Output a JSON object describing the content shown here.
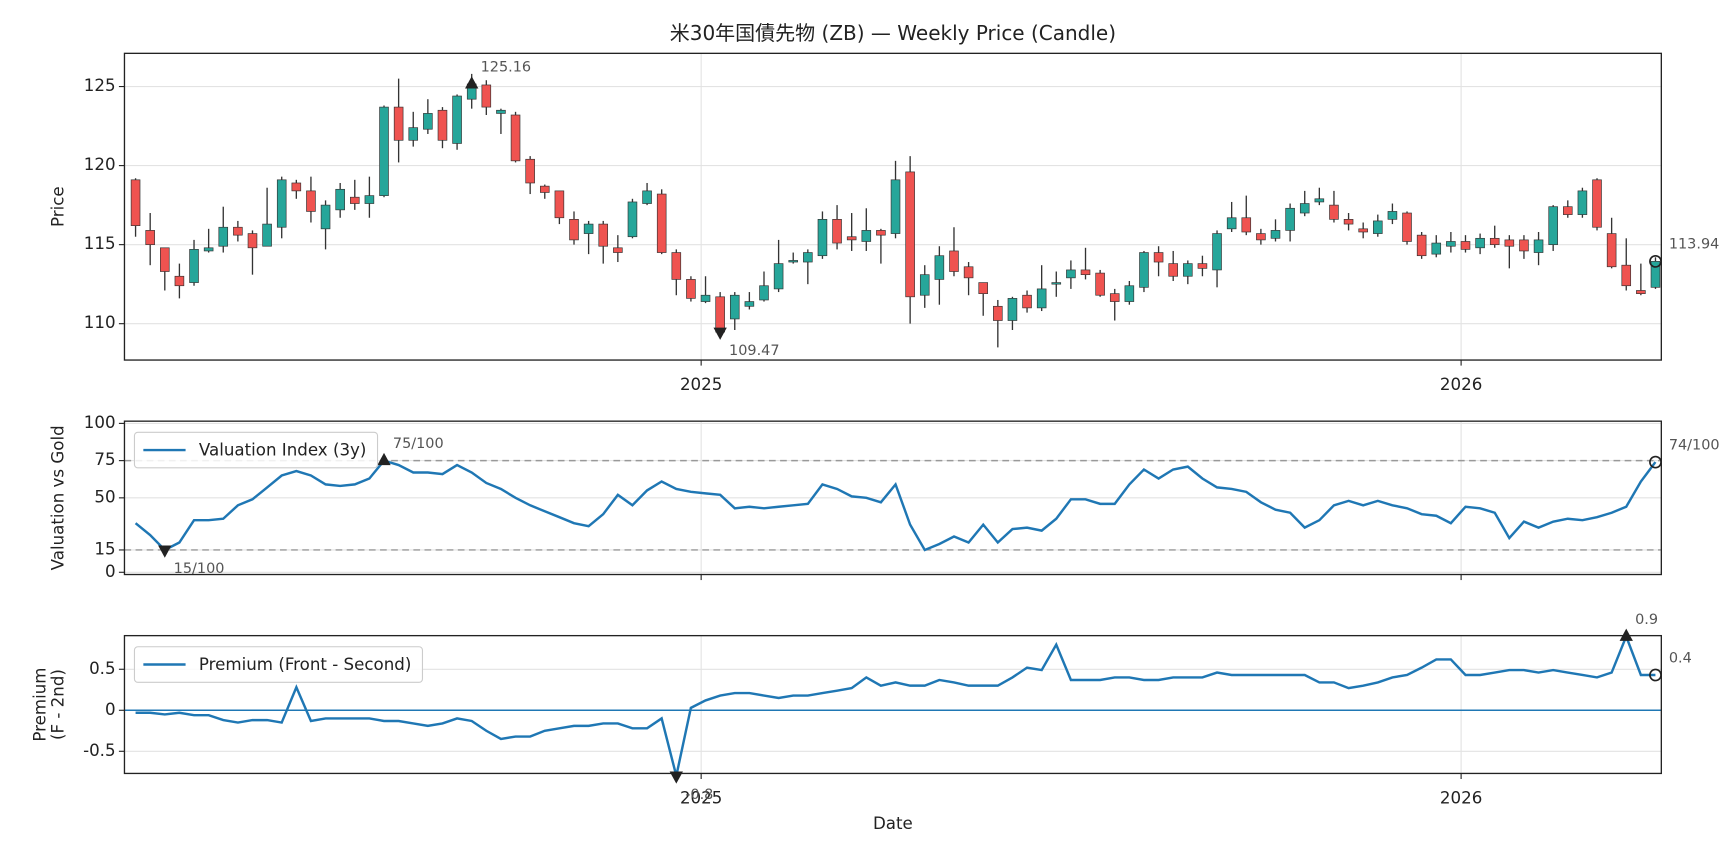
{
  "chart_data": [
    {
      "type": "candlestick",
      "title": "米30年国債先物 (ZB) — Weekly Price (Candle)",
      "ylabel": [
        "Price"
      ],
      "up_color": "#26a69a",
      "down_color": "#ef5350",
      "grid": true,
      "xlim": [
        -0.76,
        104.4
      ],
      "xticks": [
        {
          "value": 38.7,
          "label": "2025"
        },
        {
          "value": 90.7,
          "label": "2026"
        }
      ],
      "ylim": [
        107.7,
        127.1
      ],
      "yticks": [
        110,
        115,
        120,
        125
      ],
      "open": [
        119.1,
        115.9,
        114.8,
        113.0,
        112.6,
        114.6,
        114.9,
        116.1,
        115.7,
        114.9,
        116.1,
        118.9,
        118.4,
        116.0,
        117.2,
        118.0,
        117.6,
        118.1,
        123.7,
        121.6,
        122.3,
        123.5,
        121.4,
        124.2,
        125.1,
        123.3,
        123.2,
        120.4,
        118.7,
        118.4,
        116.6,
        115.7,
        116.3,
        114.8,
        115.5,
        117.6,
        118.2,
        114.5,
        112.8,
        111.4,
        111.7,
        110.3,
        111.1,
        111.5,
        112.2,
        113.9,
        113.9,
        114.3,
        116.6,
        115.5,
        115.2,
        115.9,
        115.7,
        119.6,
        111.8,
        112.8,
        114.6,
        113.6,
        112.6,
        111.1,
        110.2,
        111.8,
        111.0,
        112.5,
        112.9,
        113.4,
        113.2,
        111.9,
        111.4,
        112.3,
        114.5,
        113.8,
        113.0,
        113.8,
        113.4,
        116.0,
        116.7,
        115.7,
        115.4,
        115.9,
        117.0,
        117.7,
        117.5,
        116.6,
        116.0,
        115.7,
        116.6,
        117.0,
        115.6,
        114.4,
        114.9,
        115.2,
        114.8,
        115.4,
        115.3,
        115.3,
        114.5,
        115.0,
        117.4,
        116.9,
        119.1,
        115.7,
        113.7,
        112.1,
        112.3
      ],
      "high": [
        119.2,
        117.0,
        114.8,
        113.8,
        115.3,
        116.0,
        117.4,
        116.5,
        115.9,
        118.6,
        119.3,
        119.1,
        119.3,
        117.8,
        118.9,
        119.1,
        119.3,
        123.8,
        125.5,
        123.4,
        124.2,
        123.7,
        124.5,
        125.8,
        125.4,
        123.6,
        123.4,
        120.6,
        118.8,
        118.4,
        117.1,
        116.5,
        116.5,
        115.6,
        117.9,
        118.9,
        118.5,
        114.7,
        113.0,
        113.0,
        112.0,
        112.0,
        112.0,
        113.3,
        115.3,
        114.5,
        114.7,
        117.1,
        117.5,
        117.0,
        117.3,
        116.0,
        120.3,
        120.6,
        113.7,
        114.9,
        116.1,
        113.9,
        112.6,
        111.5,
        111.7,
        112.1,
        113.7,
        113.3,
        114.0,
        114.8,
        113.4,
        112.2,
        112.7,
        114.6,
        114.9,
        114.6,
        114.0,
        114.3,
        115.9,
        117.7,
        118.1,
        116.0,
        116.6,
        117.6,
        118.4,
        118.6,
        118.4,
        117.0,
        116.4,
        116.9,
        117.6,
        117.1,
        115.8,
        115.6,
        115.8,
        115.6,
        115.7,
        116.2,
        115.6,
        115.6,
        115.8,
        117.5,
        117.8,
        118.6,
        119.2,
        116.7,
        115.4,
        113.8,
        114.2
      ],
      "low": [
        115.5,
        113.7,
        112.1,
        111.6,
        112.4,
        114.5,
        114.5,
        115.2,
        113.1,
        114.9,
        115.4,
        117.9,
        116.4,
        114.7,
        116.7,
        117.2,
        116.7,
        118.0,
        120.2,
        121.2,
        122.0,
        121.1,
        121.0,
        123.6,
        123.2,
        122.0,
        120.2,
        118.2,
        117.9,
        116.3,
        115.0,
        114.4,
        113.8,
        113.9,
        115.4,
        117.5,
        114.4,
        111.8,
        111.4,
        111.3,
        109.3,
        109.6,
        110.9,
        111.4,
        112.0,
        113.8,
        112.5,
        114.1,
        114.7,
        114.6,
        114.6,
        113.8,
        115.4,
        110.0,
        111.0,
        111.2,
        113.0,
        111.8,
        110.5,
        108.5,
        109.6,
        110.7,
        110.8,
        111.7,
        112.2,
        112.8,
        111.7,
        110.2,
        111.2,
        112.0,
        113.0,
        112.7,
        112.5,
        113.0,
        112.3,
        115.8,
        115.6,
        115.0,
        115.2,
        115.2,
        116.8,
        117.5,
        116.4,
        115.9,
        115.4,
        115.5,
        116.3,
        115.0,
        114.1,
        114.2,
        114.5,
        114.5,
        114.4,
        114.8,
        113.5,
        114.1,
        113.7,
        114.6,
        116.7,
        116.7,
        115.9,
        113.5,
        112.1,
        111.8,
        112.2
      ],
      "close": [
        116.2,
        115.0,
        113.3,
        112.4,
        114.7,
        114.8,
        116.1,
        115.6,
        114.8,
        116.3,
        119.1,
        118.4,
        117.1,
        117.5,
        118.5,
        117.6,
        118.1,
        123.7,
        121.6,
        122.4,
        123.3,
        121.6,
        124.4,
        125.16,
        123.7,
        123.5,
        120.3,
        118.9,
        118.3,
        116.7,
        115.3,
        116.3,
        114.9,
        114.5,
        117.7,
        118.4,
        114.5,
        112.8,
        111.6,
        111.8,
        109.47,
        111.8,
        111.4,
        112.4,
        113.8,
        114.0,
        114.5,
        116.6,
        115.1,
        115.3,
        115.9,
        115.6,
        119.1,
        111.7,
        113.1,
        114.3,
        113.3,
        112.9,
        111.9,
        110.2,
        111.6,
        111.0,
        112.2,
        112.6,
        113.4,
        113.1,
        111.8,
        111.4,
        112.4,
        114.5,
        113.9,
        113.0,
        113.8,
        113.5,
        115.7,
        116.7,
        115.8,
        115.3,
        115.9,
        117.3,
        117.6,
        117.9,
        116.6,
        116.3,
        115.8,
        116.5,
        117.1,
        115.2,
        114.3,
        115.1,
        115.2,
        114.7,
        115.4,
        115.0,
        114.9,
        114.6,
        115.3,
        117.4,
        116.9,
        118.4,
        116.1,
        113.6,
        112.4,
        111.9,
        113.94
      ]
    },
    {
      "type": "line",
      "ylabel": [
        "Valuation vs Gold"
      ],
      "grid": true,
      "extreme_lines": true,
      "xlim": [
        -0.76,
        104.4
      ],
      "xticks": [
        38.7,
        90.7
      ],
      "show_xtick_labels": false,
      "ylim": [
        -1.5,
        101.5
      ],
      "yticks": [
        0,
        15,
        50,
        75,
        100
      ],
      "series": [
        {
          "name": "Valuation Index (3y)",
          "color": "#1f77b4",
          "values": [
            33,
            25,
            15,
            20,
            35,
            35,
            36,
            45,
            49,
            57,
            65,
            68,
            65,
            59,
            58,
            59,
            63,
            75,
            72,
            67,
            67,
            66,
            72,
            67,
            60,
            56,
            50,
            45,
            41,
            37,
            33,
            31,
            39,
            52,
            45,
            55,
            61,
            56,
            54,
            53,
            52,
            43,
            44,
            43,
            44,
            45,
            46,
            59,
            56,
            51,
            50,
            47,
            59,
            32,
            15,
            19,
            24,
            20,
            32,
            20,
            29,
            30,
            28,
            36,
            49,
            49,
            46,
            46,
            59,
            69,
            63,
            69,
            71,
            63,
            57,
            56,
            54,
            47,
            42,
            40,
            30,
            35,
            45,
            48,
            45,
            48,
            45,
            43,
            39,
            38,
            33,
            44,
            43,
            40,
            23,
            34,
            30,
            34,
            36,
            35,
            37,
            40,
            44,
            61,
            74
          ],
          "value_labels": [
            null,
            null,
            "15/100",
            null,
            null,
            null,
            null,
            null,
            null,
            null,
            null,
            null,
            null,
            null,
            null,
            null,
            null,
            "75/100",
            null,
            null,
            null,
            null,
            null,
            null,
            null,
            null,
            null,
            null,
            null,
            null,
            null,
            null,
            null,
            null,
            null,
            null,
            null,
            null,
            null,
            null,
            null,
            null,
            null,
            null,
            null,
            null,
            null,
            null,
            null,
            null,
            null,
            null,
            null,
            null,
            null,
            null,
            null,
            null,
            null,
            null,
            null,
            null,
            null,
            null,
            null,
            null,
            null,
            null,
            null,
            null,
            null,
            null,
            null,
            null,
            null,
            null,
            null,
            null,
            null,
            null,
            null,
            null,
            null,
            null,
            null,
            null,
            null,
            null,
            null,
            null,
            null,
            null,
            null,
            null,
            null,
            null,
            null,
            null,
            null,
            null,
            null,
            null,
            null,
            null,
            "74/100"
          ]
        }
      ]
    },
    {
      "type": "line",
      "ylabel": [
        "Premium",
        "(F - 2nd)"
      ],
      "xlabel": "Date",
      "grid": true,
      "zero_line": true,
      "xlim": [
        -0.76,
        104.4
      ],
      "xticks": [
        {
          "value": 38.7,
          "label": "2025"
        },
        {
          "value": 90.7,
          "label": "2026"
        }
      ],
      "ylim": [
        -0.77,
        0.91
      ],
      "yticks": [
        -0.5,
        0.0,
        0.5
      ],
      "series": [
        {
          "name": "Premium (Front - Second)",
          "color": "#1f77b4",
          "values": [
            -0.03,
            -0.03,
            -0.05,
            -0.03,
            -0.06,
            -0.06,
            -0.12,
            -0.15,
            -0.12,
            -0.12,
            -0.15,
            0.28,
            -0.13,
            -0.1,
            -0.1,
            -0.1,
            -0.1,
            -0.13,
            -0.13,
            -0.16,
            -0.19,
            -0.16,
            -0.1,
            -0.13,
            -0.25,
            -0.35,
            -0.32,
            -0.32,
            -0.25,
            -0.22,
            -0.19,
            -0.19,
            -0.16,
            -0.16,
            -0.22,
            -0.22,
            -0.1,
            -0.8,
            0.03,
            0.12,
            0.18,
            0.21,
            0.21,
            0.18,
            0.15,
            0.18,
            0.18,
            0.21,
            0.24,
            0.27,
            0.4,
            0.3,
            0.34,
            0.3,
            0.3,
            0.37,
            0.34,
            0.3,
            0.3,
            0.3,
            0.4,
            0.52,
            0.49,
            0.8,
            0.37,
            0.37,
            0.37,
            0.4,
            0.4,
            0.37,
            0.37,
            0.4,
            0.4,
            0.4,
            0.46,
            0.43,
            0.43,
            0.43,
            0.43,
            0.43,
            0.43,
            0.34,
            0.34,
            0.27,
            0.3,
            0.34,
            0.4,
            0.43,
            0.52,
            0.62,
            0.62,
            0.43,
            0.43,
            0.46,
            0.49,
            0.49,
            0.46,
            0.49,
            0.46,
            0.43,
            0.4,
            0.46,
            0.9,
            0.43,
            0.43
          ],
          "value_labels": [
            null,
            null,
            null,
            null,
            null,
            null,
            null,
            null,
            null,
            null,
            null,
            null,
            null,
            null,
            null,
            null,
            null,
            null,
            null,
            null,
            null,
            null,
            null,
            null,
            null,
            null,
            null,
            null,
            null,
            null,
            null,
            null,
            null,
            null,
            null,
            null,
            null,
            "-0.8",
            null,
            null,
            null,
            null,
            null,
            null,
            null,
            null,
            null,
            null,
            null,
            null,
            null,
            null,
            null,
            null,
            null,
            null,
            null,
            null,
            null,
            null,
            null,
            null,
            null,
            null,
            null,
            null,
            null,
            null,
            null,
            null,
            null,
            null,
            null,
            null,
            null,
            null,
            null,
            null,
            null,
            null,
            null,
            null,
            null,
            null,
            null,
            null,
            null,
            null,
            null,
            null,
            null,
            null,
            null,
            null,
            null,
            null,
            null,
            null,
            null,
            null,
            null,
            null,
            "0.9",
            null,
            "0.4"
          ]
        }
      ]
    }
  ]
}
